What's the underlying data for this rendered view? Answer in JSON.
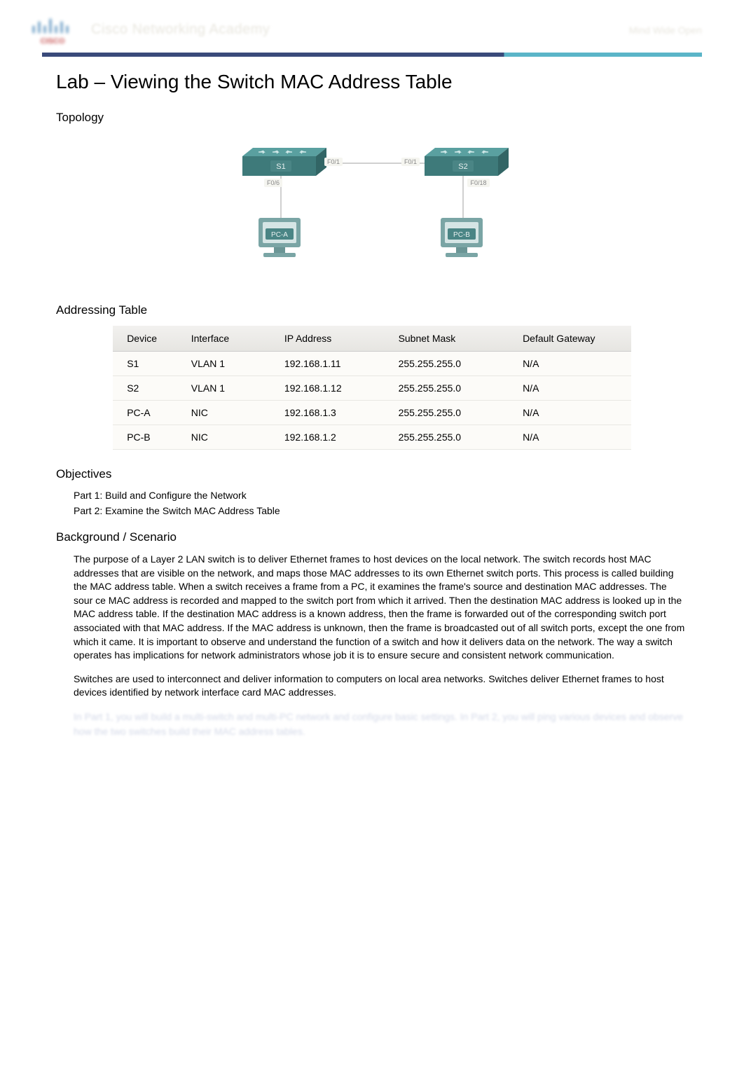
{
  "header": {
    "academy_label": "Cisco Networking Academy",
    "tagline": "Mind Wide Open"
  },
  "title": "Lab  – Viewing the Switch MAC Address Table",
  "sections": {
    "topology": "Topology",
    "addressing": "Addressing Table",
    "objectives": "Objectives",
    "background": "Background / Scenario"
  },
  "topology": {
    "switch_color": "#3e7a7a",
    "switch_top_color": "#5aa0a0",
    "pc_color": "#8bb5b5",
    "pc_screen_color": "#d5e5e5",
    "cable_color": "#d0d0d0",
    "label_bg": "#4a8585",
    "label_text_color": "#e8f0f0",
    "labels": {
      "s1": "S1",
      "s2": "S2",
      "pca": "PC-A",
      "pcb": "PC-B",
      "f1": "F0/1",
      "f6": "F0/6",
      "f18": "F0/18"
    }
  },
  "addressing_table": {
    "columns": [
      "Device",
      "Interface",
      "IP Address",
      "Subnet Mask",
      "Default Gateway"
    ],
    "rows": [
      [
        "S1",
        "VLAN 1",
        "192.168.1.11",
        "255.255.255.0",
        "N/A"
      ],
      [
        "S2",
        "VLAN 1",
        "192.168.1.12",
        "255.255.255.0",
        "N/A"
      ],
      [
        "PC-A",
        "NIC",
        "192.168.1.3",
        "255.255.255.0",
        "N/A"
      ],
      [
        "PC-B",
        "NIC",
        "192.168.1.2",
        "255.255.255.0",
        "N/A"
      ]
    ],
    "header_bg": "#ecebe7",
    "row_bg": "#fcfbf8",
    "border_color": "#e8e7e3"
  },
  "objectives": {
    "items": [
      "Part 1: Build and Configure the Network",
      "Part 2: Examine the Switch MAC Address Table"
    ]
  },
  "background": {
    "para1": "The purpose of a Layer 2 LAN switch is to deliver Ethernet frames to host devices on the local network. The switch records host MAC addresses that are visible on the network, and maps those MAC addresses to its own Ethernet switch ports. This process is called building the MAC address table. When a switch receives a frame  from a PC, it examines the frame's source and destination MAC addresses. The sour              ce MAC address is recorded and mapped to the switch port from which it arrived. Then the destination MAC address is looked up in the MAC address table. If the destination MAC address is a known address, then the frame is forwarded out of the corresponding switch port associated with that MAC address. If the MAC address is unknown, then the frame is broadcasted out of all switch ports, except the one from which it came. It is important to observe and understand the function of a switch and how it delivers data on the network. The way a switch operates has implications for network administrators whose job it is to ensure secure and consistent network communication.",
    "para2": "Switches are used to interconnect and deliver information to computers on local area networks. Switches deliver Ethernet frames to host devices identified by network interface card MAC addresses.",
    "blurred": "In Part 1, you will build a multi-switch and multi-PC network and configure basic settings. In Part 2, you will ping various devices and observe how the two switches build their MAC address tables."
  }
}
